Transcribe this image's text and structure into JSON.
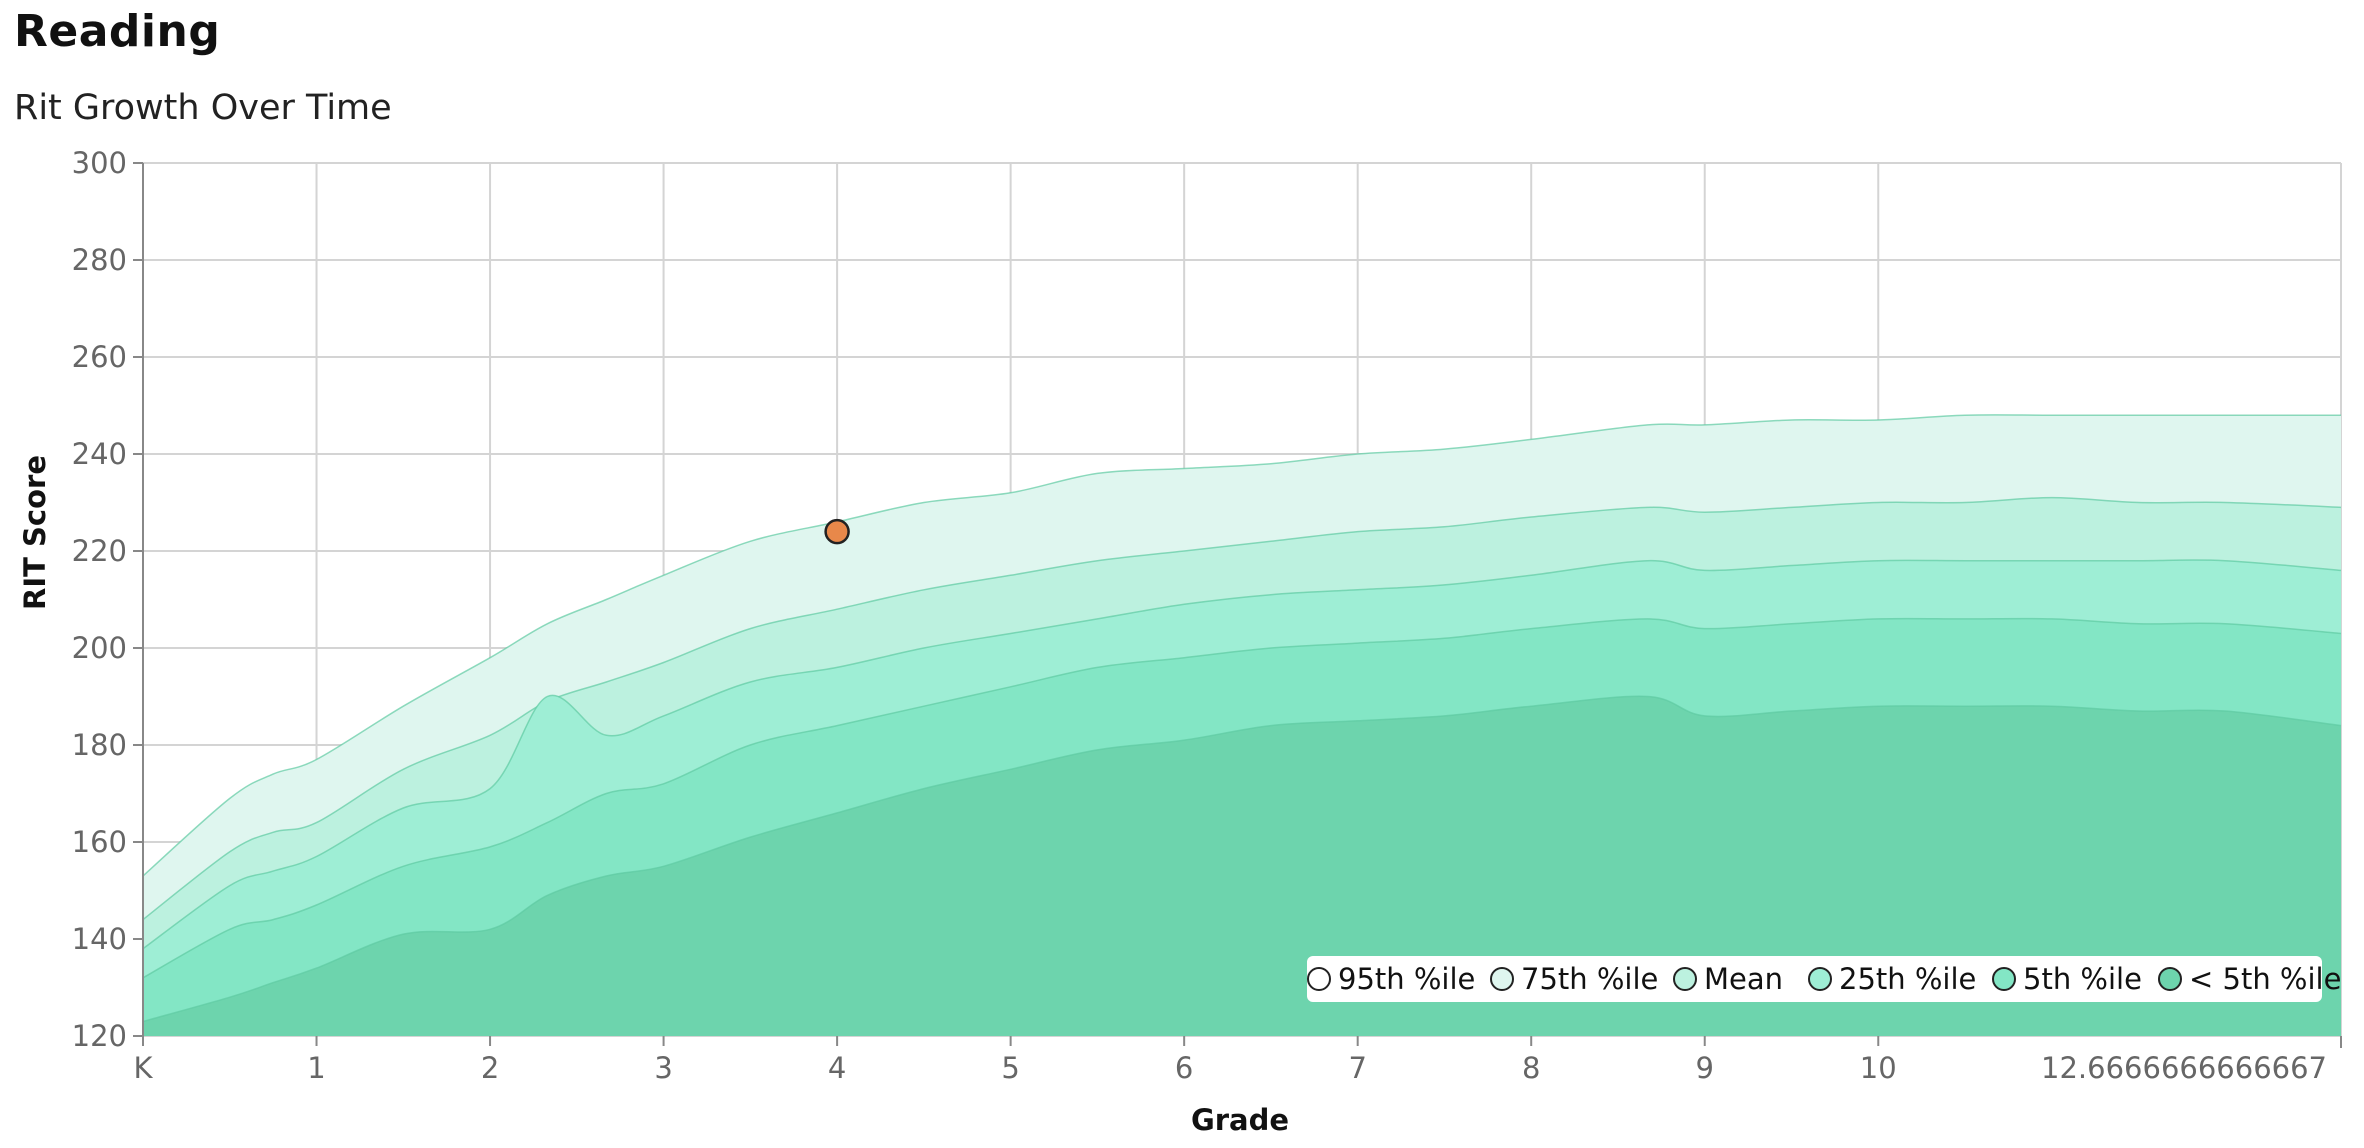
{
  "page": {
    "title": "Reading",
    "subtitle": "Rit Growth Over Time"
  },
  "chart_data": {
    "type": "area",
    "title": "Rit Growth Over Time",
    "xlabel": "Grade",
    "ylabel": "RIT Score",
    "xlim": [
      0,
      12.6666666666667
    ],
    "ylim": [
      120,
      300
    ],
    "x_ticks": [
      {
        "value": 0,
        "label": "K"
      },
      {
        "value": 1,
        "label": "1"
      },
      {
        "value": 2,
        "label": "2"
      },
      {
        "value": 3,
        "label": "3"
      },
      {
        "value": 4,
        "label": "4"
      },
      {
        "value": 5,
        "label": "5"
      },
      {
        "value": 6,
        "label": "6"
      },
      {
        "value": 7,
        "label": "7"
      },
      {
        "value": 8,
        "label": "8"
      },
      {
        "value": 9,
        "label": "9"
      },
      {
        "value": 10,
        "label": "10"
      },
      {
        "value": 12.6666666666667,
        "label": "12.6666666666667"
      }
    ],
    "y_ticks": [
      120,
      140,
      160,
      180,
      200,
      220,
      240,
      260,
      280,
      300
    ],
    "grid": true,
    "legend_position": "bottom-right",
    "x": [
      0,
      0.5,
      0.75,
      1,
      1.5,
      2,
      2.33,
      2.67,
      3,
      3.5,
      4,
      4.5,
      5,
      5.5,
      6,
      6.5,
      7,
      7.5,
      8,
      8.67,
      9,
      9.5,
      10,
      10.5,
      11,
      11.5,
      12,
      12.6666666666667
    ],
    "series": [
      {
        "name": "95th %ile",
        "color": "#dff6ef",
        "values": [
          153,
          169,
          174,
          177,
          188,
          198,
          205,
          210,
          215,
          222,
          226,
          230,
          232,
          236,
          237,
          238,
          240,
          241,
          243,
          246,
          246,
          247,
          247,
          248,
          248,
          248,
          248,
          248
        ]
      },
      {
        "name": "75th %ile",
        "color": "#bcf1df",
        "values": [
          144,
          158,
          162,
          164,
          175,
          182,
          189,
          193,
          197,
          204,
          208,
          212,
          215,
          218,
          220,
          222,
          224,
          225,
          227,
          229,
          228,
          229,
          230,
          230,
          231,
          230,
          230,
          229
        ]
      },
      {
        "name": "Mean",
        "color": "#9eeed5",
        "values": [
          138,
          151,
          154,
          157,
          167,
          171,
          190,
          182,
          186,
          193,
          196,
          200,
          203,
          206,
          209,
          211,
          212,
          213,
          215,
          218,
          216,
          217,
          218,
          218,
          218,
          218,
          218,
          216
        ]
      },
      {
        "name": "25th %ile",
        "color": "#83e6c5",
        "values": [
          132,
          142,
          144,
          147,
          155,
          159,
          164,
          170,
          172,
          180,
          184,
          188,
          192,
          196,
          198,
          200,
          201,
          202,
          204,
          206,
          204,
          205,
          206,
          206,
          206,
          205,
          205,
          203
        ]
      },
      {
        "name": "5th %ile",
        "color": "#6dd4ad",
        "values": [
          123,
          128,
          131,
          134,
          141,
          142,
          149,
          153,
          155,
          161,
          166,
          171,
          175,
          179,
          181,
          184,
          185,
          186,
          188,
          190,
          186,
          187,
          188,
          188,
          188,
          187,
          187,
          184
        ]
      }
    ],
    "legend": [
      {
        "label": "95th %ile",
        "color": "#ffffff"
      },
      {
        "label": "75th %ile",
        "color": "#dff6ef"
      },
      {
        "label": "Mean",
        "color": "#bcf1df"
      },
      {
        "label": "25th %ile",
        "color": "#9eeed5"
      },
      {
        "label": "5th %ile",
        "color": "#83e6c5"
      },
      {
        "label": "< 5th %ile",
        "color": "#6dd4ad"
      }
    ],
    "student_points": [
      {
        "x": 4,
        "y": 224,
        "color": "#e8884a"
      }
    ]
  }
}
